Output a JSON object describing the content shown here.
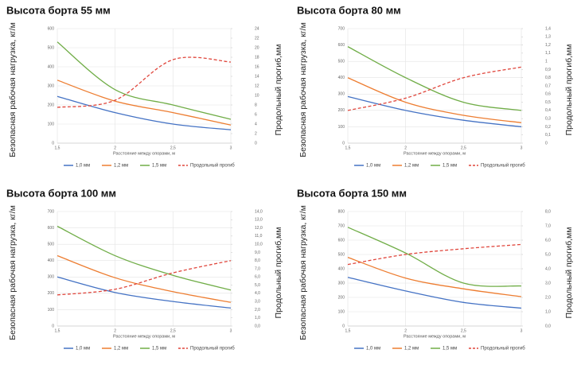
{
  "chart_data": [
    {
      "type": "line",
      "title": "Высота борта 55 мм",
      "x_label": "Расстояние между опорами, м",
      "y_label": "Безопасная рабочая нагрузка, кг/м",
      "y2_label": "Продольный прогиб,мм",
      "x": [
        1.5,
        2,
        2.5,
        3
      ],
      "xlim": [
        1.5,
        3
      ],
      "xticks": [
        {
          "value": 1.5,
          "label": "1,5"
        },
        2,
        {
          "value": 2.5,
          "label": "2,5"
        },
        3
      ],
      "ylim": [
        0,
        600
      ],
      "yticks": [
        0,
        100,
        200,
        300,
        400,
        500,
        600
      ],
      "y2lim": [
        0,
        24
      ],
      "y2ticks": [
        0,
        2,
        4,
        6,
        8,
        10,
        12,
        14,
        16,
        18,
        20,
        22,
        24
      ],
      "grid": true,
      "legend": "bottom",
      "series": [
        {
          "name": "1,0 мм",
          "color": "#4472c4",
          "values": [
            245,
            160,
            100,
            70
          ]
        },
        {
          "name": "1,2 мм",
          "color": "#ed7d31",
          "values": [
            330,
            220,
            160,
            95
          ]
        },
        {
          "name": "1,5 мм",
          "color": "#70ad47",
          "values": [
            530,
            280,
            200,
            125
          ]
        },
        {
          "name": "Продольный прогиб",
          "color": "#e0463c",
          "linestyle": "dashed",
          "axis": "y2",
          "values": [
            7.5,
            9,
            17.5,
            17
          ]
        }
      ]
    },
    {
      "type": "line",
      "title": "Высота борта 80 мм",
      "x_label": "Расстояние между опорами, м",
      "y_label": "Безопасная рабочая нагрузка, кг/м",
      "y2_label": "Продольный прогиб,мм",
      "x": [
        1.5,
        2,
        2.5,
        3
      ],
      "xlim": [
        1.5,
        3
      ],
      "xticks": [
        {
          "value": 1.5,
          "label": "1,5"
        },
        2,
        {
          "value": 2.5,
          "label": "2,5"
        },
        3
      ],
      "ylim": [
        0,
        700
      ],
      "yticks": [
        0,
        100,
        200,
        300,
        400,
        500,
        600,
        700
      ],
      "y2lim": [
        0,
        1.4
      ],
      "y2ticks": [
        0,
        {
          "value": 0.1,
          "label": "0,1"
        },
        {
          "value": 0.2,
          "label": "0,2"
        },
        {
          "value": 0.3,
          "label": "0,3"
        },
        {
          "value": 0.4,
          "label": "0,4"
        },
        {
          "value": 0.5,
          "label": "0,5"
        },
        {
          "value": 0.6,
          "label": "0,6"
        },
        {
          "value": 0.7,
          "label": "0,7"
        },
        {
          "value": 0.8,
          "label": "0,8"
        },
        {
          "value": 0.9,
          "label": "0,9"
        },
        1,
        {
          "value": 1.1,
          "label": "1,1"
        },
        {
          "value": 1.2,
          "label": "1,2"
        },
        {
          "value": 1.3,
          "label": "1,3"
        },
        {
          "value": 1.4,
          "label": "1,4"
        }
      ],
      "grid": true,
      "legend": "bottom",
      "series": [
        {
          "name": "1,0 мм",
          "color": "#4472c4",
          "values": [
            285,
            200,
            140,
            100
          ]
        },
        {
          "name": "1,2 мм",
          "color": "#ed7d31",
          "values": [
            400,
            250,
            170,
            125
          ]
        },
        {
          "name": "1,5 мм",
          "color": "#70ad47",
          "values": [
            590,
            400,
            250,
            200
          ]
        },
        {
          "name": "Продольный прогиб",
          "color": "#e0463c",
          "linestyle": "dashed",
          "axis": "y2",
          "values": [
            0.4,
            0.55,
            0.8,
            0.93
          ]
        }
      ]
    },
    {
      "type": "line",
      "title": "Высота борта 100 мм",
      "x_label": "Расстояние между опорами, м",
      "y_label": "Безопасная рабочая нагрузка, кг/м",
      "y2_label": "Продольный прогиб,мм",
      "x": [
        1.5,
        2,
        2.5,
        3
      ],
      "xlim": [
        1.5,
        3
      ],
      "xticks": [
        {
          "value": 1.5,
          "label": "1,5"
        },
        2,
        {
          "value": 2.5,
          "label": "2,5"
        },
        3
      ],
      "ylim": [
        0,
        700
      ],
      "yticks": [
        0,
        100,
        200,
        300,
        400,
        500,
        600,
        700
      ],
      "y2lim": [
        0,
        14
      ],
      "y2ticks": [
        {
          "value": 0,
          "label": "0,0"
        },
        {
          "value": 1,
          "label": "1,0"
        },
        {
          "value": 2,
          "label": "2,0"
        },
        {
          "value": 3,
          "label": "3,0"
        },
        {
          "value": 4,
          "label": "4,0"
        },
        {
          "value": 5,
          "label": "5,0"
        },
        {
          "value": 6,
          "label": "6,0"
        },
        {
          "value": 7,
          "label": "7,0"
        },
        {
          "value": 8,
          "label": "8,0"
        },
        {
          "value": 9,
          "label": "9,0"
        },
        {
          "value": 10,
          "label": "10,0"
        },
        {
          "value": 11,
          "label": "11,0"
        },
        {
          "value": 12,
          "label": "12,0"
        },
        {
          "value": 13,
          "label": "13,0"
        },
        {
          "value": 14,
          "label": "14,0"
        }
      ],
      "grid": true,
      "legend": "bottom",
      "series": [
        {
          "name": "1,0 мм",
          "color": "#4472c4",
          "values": [
            300,
            205,
            150,
            110
          ]
        },
        {
          "name": "1,2 мм",
          "color": "#ed7d31",
          "values": [
            430,
            295,
            210,
            145
          ]
        },
        {
          "name": "1,5 мм",
          "color": "#70ad47",
          "values": [
            610,
            430,
            310,
            220
          ]
        },
        {
          "name": "Продольный прогиб",
          "color": "#e0463c",
          "linestyle": "dashed",
          "axis": "y2",
          "values": [
            3.8,
            4.5,
            6.5,
            8.0
          ]
        }
      ]
    },
    {
      "type": "line",
      "title": "Высота борта 150 мм",
      "x_label": "Расстояние между опорами, м",
      "y_label": "Безопасная рабочая нагрузка, кг/м",
      "y2_label": "Продольный прогиб,мм",
      "x": [
        1.5,
        2,
        2.5,
        3
      ],
      "xlim": [
        1.5,
        3
      ],
      "xticks": [
        {
          "value": 1.5,
          "label": "1,5"
        },
        2,
        {
          "value": 2.5,
          "label": "2,5"
        },
        3
      ],
      "ylim": [
        0,
        800
      ],
      "yticks": [
        0,
        100,
        200,
        300,
        400,
        500,
        600,
        700,
        800
      ],
      "y2lim": [
        0,
        8
      ],
      "y2ticks": [
        {
          "value": 0,
          "label": "0,0"
        },
        {
          "value": 1,
          "label": "1,0"
        },
        {
          "value": 2,
          "label": "2,0"
        },
        {
          "value": 3,
          "label": "3,0"
        },
        {
          "value": 4,
          "label": "4,0"
        },
        {
          "value": 5,
          "label": "5,0"
        },
        {
          "value": 6,
          "label": "6,0"
        },
        {
          "value": 7,
          "label": "7,0"
        },
        {
          "value": 8,
          "label": "8,0"
        }
      ],
      "grid": true,
      "legend": "bottom",
      "series": [
        {
          "name": "1,0 мм",
          "color": "#4472c4",
          "values": [
            340,
            245,
            165,
            125
          ]
        },
        {
          "name": "1,2 мм",
          "color": "#ed7d31",
          "values": [
            480,
            335,
            260,
            205
          ]
        },
        {
          "name": "1,5 мм",
          "color": "#70ad47",
          "values": [
            690,
            510,
            300,
            280
          ]
        },
        {
          "name": "Продольный прогиб",
          "color": "#e0463c",
          "linestyle": "dashed",
          "axis": "y2",
          "values": [
            4.3,
            5.0,
            5.4,
            5.7
          ]
        }
      ]
    }
  ]
}
